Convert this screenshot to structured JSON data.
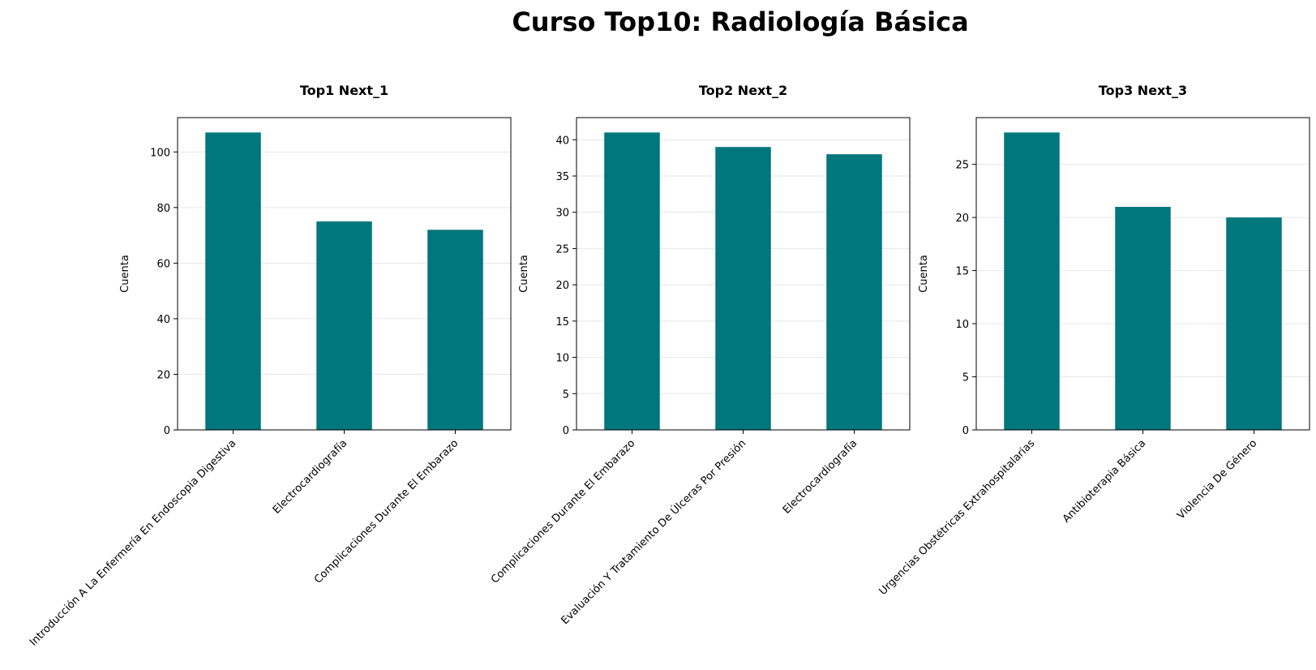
{
  "figure": {
    "title": "Curso Top10: Radiología Básica",
    "bar_color": "#00767d",
    "grid_color": "#e6e6e6"
  },
  "chart_data": [
    {
      "type": "bar",
      "title": "Top1 Next_1",
      "xlabel": "",
      "ylabel": "Cuenta",
      "categories": [
        "Introducción A La Enfermería En Endoscopia Digestiva",
        "Electrocardiografía",
        "Complicaciones Durante El Embarazo"
      ],
      "values": [
        107,
        75,
        72
      ],
      "ylim": [
        0,
        112.35
      ],
      "yticks": [
        0,
        20,
        40,
        60,
        80,
        100
      ],
      "grid": "y"
    },
    {
      "type": "bar",
      "title": "Top2 Next_2",
      "xlabel": "",
      "ylabel": "Cuenta",
      "categories": [
        "Complicaciones Durante El Embarazo",
        "Evaluación Y Tratamiento De Úlceras Por Presión",
        "Electrocardiografía"
      ],
      "values": [
        41,
        39,
        38
      ],
      "ylim": [
        0,
        43.05
      ],
      "yticks": [
        0,
        5,
        10,
        15,
        20,
        25,
        30,
        35,
        40
      ],
      "grid": "y"
    },
    {
      "type": "bar",
      "title": "Top3 Next_3",
      "xlabel": "",
      "ylabel": "Cuenta",
      "categories": [
        "Urgencias Obstétricas Extrahospitalarias",
        "Antibioterapia Básica",
        "Violencia De Género"
      ],
      "values": [
        28,
        21,
        20
      ],
      "ylim": [
        0,
        29.4
      ],
      "yticks": [
        0,
        5,
        10,
        15,
        20,
        25
      ],
      "grid": "y"
    }
  ]
}
